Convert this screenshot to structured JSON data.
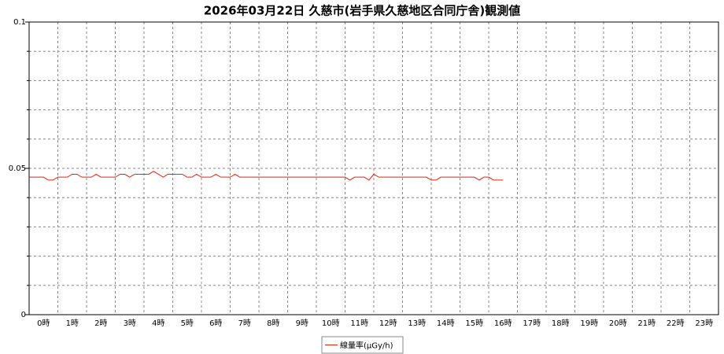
{
  "chart_data": {
    "type": "line",
    "title": "2026年03月22日 久慈市(岩手県久慈地区合同庁舎)観測値",
    "categories": [
      "0時",
      "1時",
      "2時",
      "3時",
      "4時",
      "5時",
      "6時",
      "7時",
      "8時",
      "9時",
      "10時",
      "11時",
      "12時",
      "13時",
      "14時",
      "15時",
      "16時",
      "17時",
      "18時",
      "19時",
      "20時",
      "21時",
      "22時",
      "23時"
    ],
    "xlim": [
      0,
      24
    ],
    "x": [
      0,
      0.17,
      0.33,
      0.5,
      0.67,
      0.83,
      1,
      1.17,
      1.33,
      1.5,
      1.67,
      1.83,
      2,
      2.17,
      2.33,
      2.5,
      2.67,
      2.83,
      3,
      3.17,
      3.33,
      3.5,
      3.67,
      3.83,
      4,
      4.17,
      4.33,
      4.5,
      4.67,
      4.83,
      5,
      5.17,
      5.33,
      5.5,
      5.67,
      5.83,
      6,
      6.17,
      6.33,
      6.5,
      6.67,
      6.83,
      7,
      7.17,
      7.33,
      7.5,
      7.67,
      7.83,
      8,
      8.17,
      8.33,
      8.5,
      8.67,
      8.83,
      9,
      9.17,
      9.33,
      9.5,
      9.67,
      9.83,
      10,
      10.17,
      10.33,
      10.5,
      10.67,
      10.83,
      11,
      11.17,
      11.33,
      11.5,
      11.67,
      11.83,
      12,
      12.17,
      12.33,
      12.5,
      12.67,
      12.83,
      13,
      13.17,
      13.33,
      13.5,
      13.67,
      13.83,
      14,
      14.17,
      14.33,
      14.5,
      14.67,
      14.83,
      15,
      15.17,
      15.33,
      15.5,
      15.67,
      15.83,
      16,
      16.17,
      16.33,
      16.5
    ],
    "series": [
      {
        "name": "線量率(μGy/h)",
        "color": "#e8240c",
        "values": [
          0.047,
          0.047,
          0.047,
          0.047,
          0.046,
          0.046,
          0.047,
          0.047,
          0.047,
          0.048,
          0.048,
          0.047,
          0.047,
          0.047,
          0.048,
          0.047,
          0.047,
          0.047,
          0.047,
          0.048,
          0.048,
          0.047,
          0.048,
          0.048,
          0.048,
          0.048,
          0.049,
          0.048,
          0.047,
          0.048,
          0.048,
          0.048,
          0.048,
          0.047,
          0.047,
          0.048,
          0.047,
          0.047,
          0.047,
          0.048,
          0.047,
          0.047,
          0.047,
          0.048,
          0.047,
          0.047,
          0.047,
          0.047,
          0.047,
          0.047,
          0.047,
          0.047,
          0.047,
          0.047,
          0.047,
          0.047,
          0.047,
          0.047,
          0.047,
          0.047,
          0.047,
          0.047,
          0.047,
          0.047,
          0.047,
          0.047,
          0.047,
          0.046,
          0.047,
          0.047,
          0.047,
          0.046,
          0.048,
          0.047,
          0.047,
          0.047,
          0.047,
          0.047,
          0.047,
          0.047,
          0.047,
          0.047,
          0.047,
          0.047,
          0.046,
          0.046,
          0.047,
          0.047,
          0.047,
          0.047,
          0.047,
          0.047,
          0.047,
          0.047,
          0.046,
          0.047,
          0.047,
          0.046,
          0.046,
          0.046
        ]
      }
    ],
    "ylim": [
      0,
      0.1
    ],
    "yticks": [
      0,
      0.05,
      0.1
    ],
    "yminorticks": [
      0.01,
      0.02,
      0.03,
      0.04,
      0.06,
      0.07,
      0.08,
      0.09
    ],
    "grid": true,
    "legend": "bottom"
  }
}
